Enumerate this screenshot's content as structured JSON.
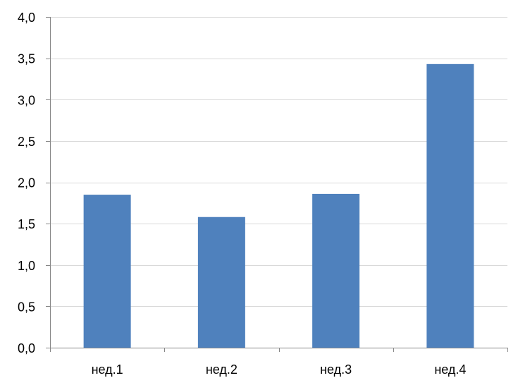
{
  "chart_data": {
    "type": "bar",
    "categories": [
      "нед.1",
      "нед.2",
      "нед.3",
      "нед.4"
    ],
    "values": [
      1.85,
      1.58,
      1.86,
      3.43
    ],
    "title": "",
    "xlabel": "",
    "ylabel": "",
    "ylim": [
      0,
      4
    ],
    "yticks": [
      "0,0",
      "0,5",
      "1,0",
      "1,5",
      "2,0",
      "2,5",
      "3,0",
      "3,5",
      "4,0"
    ],
    "grid": true,
    "legend": "none",
    "colors": {
      "bar": "#4F81BD",
      "grid": "#D9D9D9",
      "axis": "#868686"
    }
  }
}
